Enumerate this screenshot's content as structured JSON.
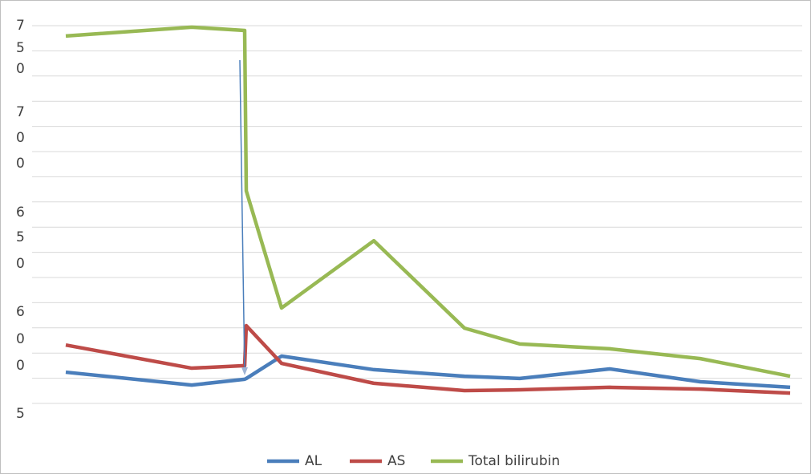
{
  "chart_data": {
    "type": "line",
    "x": [
      0,
      157,
      223,
      225,
      269,
      384,
      497,
      566,
      678,
      791,
      903
    ],
    "xlim": [
      0,
      903
    ],
    "ylim": [
      0,
      15
    ],
    "gridlines": [
      0,
      1,
      2,
      3,
      4,
      5,
      6,
      7,
      8,
      9,
      10,
      11,
      12,
      13,
      14,
      15
    ],
    "y_labels": [
      "7",
      "5",
      "0",
      "7",
      "0",
      "0",
      "6",
      "5",
      "0",
      "6",
      "0",
      "0",
      "5"
    ],
    "legend": "bottom",
    "series": [
      {
        "name": "AL",
        "color": "#4a7ebb",
        "values": [
          1.24,
          0.73,
          0.96,
          0.99,
          1.88,
          1.34,
          1.08,
          0.99,
          1.37,
          0.86,
          0.64
        ]
      },
      {
        "name": "AS",
        "color": "#be4b48",
        "values": [
          2.32,
          1.4,
          1.5,
          3.09,
          1.59,
          0.8,
          0.51,
          0.54,
          0.64,
          0.57,
          0.41
        ]
      },
      {
        "name": "Total bilirubin",
        "color": "#98b954",
        "values": [
          14.59,
          14.94,
          14.81,
          8.44,
          3.79,
          6.46,
          2.99,
          2.36,
          2.17,
          1.78,
          1.08
        ]
      }
    ]
  }
}
